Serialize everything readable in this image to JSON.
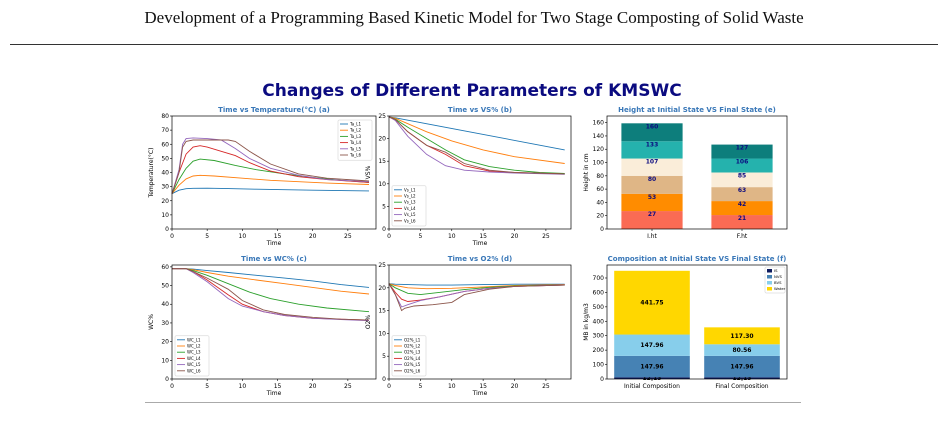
{
  "header": {
    "title": "Development of a Programming Based Kinetic Model for Two Stage Composting of Solid Waste"
  },
  "figure": {
    "title": "Changes of Different Parameters of KMSWC",
    "title_color": "#0b0b80",
    "panel_title_color": "#3a78b8"
  },
  "chart_data": [
    {
      "type": "line",
      "title": "Time vs Temperature(°C) (a)",
      "xlabel": "Time",
      "ylabel": "Temperature(°C)",
      "xlim": [
        0,
        29
      ],
      "ylim": [
        0,
        80
      ],
      "xticks": [
        0,
        5,
        10,
        15,
        20,
        25
      ],
      "yticks": [
        0,
        10,
        20,
        30,
        40,
        50,
        60,
        70,
        80
      ],
      "legend_position": "top-right",
      "series": [
        {
          "name": "Ta_L1",
          "color": "#1f77b4",
          "x": [
            0,
            1,
            2,
            3,
            5,
            8,
            12,
            16,
            20,
            24,
            28
          ],
          "y": [
            25,
            27.5,
            28.5,
            28.8,
            28.9,
            28.6,
            28.2,
            27.8,
            27.5,
            27.2,
            27
          ]
        },
        {
          "name": "Ta_L2",
          "color": "#ff7f0e",
          "x": [
            0,
            1,
            2,
            3,
            4,
            6,
            10,
            14,
            18,
            22,
            28
          ],
          "y": [
            25,
            31,
            35.5,
            37.5,
            38,
            37.5,
            36,
            34.5,
            33.5,
            32.5,
            31.5
          ]
        },
        {
          "name": "Ta_L3",
          "color": "#2ca02c",
          "x": [
            0,
            1,
            2,
            3,
            4,
            6,
            9,
            12,
            16,
            20,
            24,
            28
          ],
          "y": [
            25,
            35,
            43,
            48,
            49.5,
            48.5,
            45,
            42,
            39,
            36.5,
            34.5,
            33
          ]
        },
        {
          "name": "Ta_L4",
          "color": "#d62728",
          "x": [
            0,
            1,
            2,
            3,
            4,
            5,
            7,
            9,
            11,
            14,
            18,
            22,
            28
          ],
          "y": [
            25,
            40,
            53,
            58,
            59,
            58,
            55,
            52,
            47,
            41,
            37,
            35,
            33
          ]
        },
        {
          "name": "Ta_L5",
          "color": "#9467bd",
          "x": [
            0,
            1,
            1.5,
            2,
            3,
            5,
            7,
            9,
            11,
            14,
            18,
            22,
            28
          ],
          "y": [
            25,
            42,
            60,
            64,
            64.5,
            64,
            63,
            57,
            50,
            43,
            38,
            35,
            33.5
          ]
        },
        {
          "name": "Ta_L6",
          "color": "#8c564b",
          "x": [
            0,
            1,
            1.5,
            2,
            3,
            5,
            8,
            9,
            11,
            14,
            18,
            22,
            28
          ],
          "y": [
            25,
            40,
            58,
            62,
            63,
            63,
            63,
            62,
            55,
            46,
            39,
            36,
            34
          ]
        }
      ]
    },
    {
      "type": "line",
      "title": "Time vs VS% (b)",
      "xlabel": "Time",
      "ylabel": "VS%",
      "xlim": [
        0,
        29
      ],
      "ylim": [
        0,
        25
      ],
      "xticks": [
        0,
        5,
        10,
        15,
        20,
        25
      ],
      "yticks": [
        0,
        5,
        10,
        15,
        20,
        25
      ],
      "legend_position": "bottom-left",
      "series": [
        {
          "name": "Vs_L1",
          "color": "#1f77b4",
          "x": [
            0,
            1,
            28
          ],
          "y": [
            24.8,
            24.6,
            17.5
          ]
        },
        {
          "name": "Vs_L2",
          "color": "#ff7f0e",
          "x": [
            0,
            1,
            3,
            6,
            10,
            15,
            20,
            28
          ],
          "y": [
            24.8,
            24.5,
            23.3,
            21.5,
            19.5,
            17.5,
            16,
            14.5
          ]
        },
        {
          "name": "Vs_L3",
          "color": "#2ca02c",
          "x": [
            0,
            1,
            3,
            6,
            9,
            12,
            16,
            20,
            24,
            28
          ],
          "y": [
            24.8,
            24.3,
            22.5,
            20,
            17.5,
            15.3,
            13.8,
            13,
            12.5,
            12.3
          ]
        },
        {
          "name": "Vs_L4",
          "color": "#d62728",
          "x": [
            0,
            1,
            3,
            6,
            9,
            12,
            16,
            20,
            28
          ],
          "y": [
            24.8,
            24.2,
            21.5,
            18.5,
            16.5,
            14,
            12.8,
            12.5,
            12.2
          ]
        },
        {
          "name": "Vs_L5",
          "color": "#9467bd",
          "x": [
            0,
            1,
            3,
            6,
            9,
            12,
            16,
            20,
            28
          ],
          "y": [
            24.8,
            24,
            20.5,
            16.5,
            14,
            13,
            12.6,
            12.4,
            12.1
          ]
        },
        {
          "name": "Vs_L6",
          "color": "#8c564b",
          "x": [
            0,
            1,
            3,
            6,
            9,
            12,
            16,
            20,
            28
          ],
          "y": [
            24.8,
            24.2,
            21.5,
            18.5,
            17,
            14.5,
            13,
            12.5,
            12.2
          ]
        }
      ]
    },
    {
      "type": "bar",
      "stacked": true,
      "title": "Height at Initial State VS Final State (e)",
      "ylabel": "Height in cm",
      "categories": [
        "I.ht",
        "F.ht"
      ],
      "ylim": [
        0,
        170
      ],
      "yticks": [
        0,
        20,
        40,
        60,
        80,
        100,
        120,
        140,
        160
      ],
      "segment_colors": [
        "#fa6b54",
        "#ff8c00",
        "#dfb686",
        "#faedd9",
        "#25b2ad",
        "#0d7e7c"
      ],
      "segments": [
        [
          27,
          26,
          27,
          26,
          26,
          27
        ],
        [
          21,
          21,
          21,
          22,
          21,
          21
        ]
      ],
      "labels": [
        [
          "27",
          "53",
          "80",
          "107",
          "133",
          "160"
        ],
        [
          "21",
          "42",
          "63",
          "85",
          "106",
          "127"
        ]
      ],
      "label_color": "#0b0b80"
    },
    {
      "type": "line",
      "title": "Time vs WC% (c)",
      "xlabel": "Time",
      "ylabel": "WC%",
      "xlim": [
        0,
        29
      ],
      "ylim": [
        0,
        61
      ],
      "xticks": [
        0,
        5,
        10,
        15,
        20,
        25
      ],
      "yticks": [
        0,
        10,
        20,
        30,
        40,
        50,
        60
      ],
      "legend_position": "bottom-left",
      "series": [
        {
          "name": "WC_L1",
          "color": "#1f77b4",
          "x": [
            0,
            2,
            3,
            5,
            8,
            12,
            16,
            20,
            24,
            28
          ],
          "y": [
            59,
            59,
            58.8,
            58,
            57,
            55.5,
            54,
            52.5,
            50.5,
            49
          ]
        },
        {
          "name": "WC_L2",
          "color": "#ff7f0e",
          "x": [
            0,
            2,
            3,
            5,
            8,
            12,
            16,
            20,
            24,
            28
          ],
          "y": [
            59,
            59,
            58.5,
            57,
            55,
            53,
            51,
            49,
            47,
            45.5
          ]
        },
        {
          "name": "WC_L3",
          "color": "#2ca02c",
          "x": [
            0,
            2,
            3,
            5,
            8,
            11,
            14,
            18,
            22,
            28
          ],
          "y": [
            59,
            59,
            58,
            55.5,
            51,
            46.5,
            43,
            40,
            38,
            36
          ]
        },
        {
          "name": "WC_L4",
          "color": "#d62728",
          "x": [
            0,
            2,
            3,
            5,
            8,
            10,
            13,
            16,
            20,
            24,
            28
          ],
          "y": [
            59,
            59,
            57.5,
            53,
            45,
            40,
            36,
            34,
            32.5,
            32,
            31.5
          ]
        },
        {
          "name": "WC_L5",
          "color": "#9467bd",
          "x": [
            0,
            2,
            3,
            5,
            8,
            10,
            13,
            16,
            20,
            24,
            28
          ],
          "y": [
            59,
            59,
            57,
            52,
            43,
            39,
            36,
            34,
            32.5,
            31.8,
            31.2
          ]
        },
        {
          "name": "WC_L6",
          "color": "#8c564b",
          "x": [
            0,
            2,
            3,
            5,
            8,
            10,
            13,
            16,
            20,
            24,
            28
          ],
          "y": [
            59,
            59,
            57.5,
            54,
            48,
            42,
            37,
            34.5,
            33,
            32,
            31.5
          ]
        }
      ]
    },
    {
      "type": "line",
      "title": "Time vs O2% (d)",
      "xlabel": "Time",
      "ylabel": "O2%",
      "xlim": [
        0,
        29
      ],
      "ylim": [
        0,
        25
      ],
      "xticks": [
        0,
        5,
        10,
        15,
        20,
        25
      ],
      "yticks": [
        0,
        5,
        10,
        15,
        20,
        25
      ],
      "legend_position": "bottom-left",
      "series": [
        {
          "name": "O2%_L1",
          "color": "#1f77b4",
          "x": [
            0,
            1,
            3,
            6,
            10,
            15,
            20,
            28
          ],
          "y": [
            20.9,
            20.8,
            20.7,
            20.6,
            20.6,
            20.7,
            20.8,
            20.8
          ]
        },
        {
          "name": "O2%_L2",
          "color": "#ff7f0e",
          "x": [
            0,
            1,
            3,
            6,
            10,
            15,
            20,
            28
          ],
          "y": [
            20.9,
            20.5,
            20,
            19.8,
            19.9,
            20.2,
            20.5,
            20.7
          ]
        },
        {
          "name": "O2%_L3",
          "color": "#2ca02c",
          "x": [
            0,
            1,
            3,
            5,
            8,
            12,
            16,
            20,
            28
          ],
          "y": [
            20.9,
            20,
            18.8,
            18.5,
            19,
            19.6,
            20.1,
            20.4,
            20.6
          ]
        },
        {
          "name": "O2%_L4",
          "color": "#d62728",
          "x": [
            0,
            1,
            2,
            3,
            5,
            8,
            12,
            16,
            20,
            28
          ],
          "y": [
            20.9,
            19,
            17.5,
            17,
            17.3,
            18,
            19.2,
            19.9,
            20.3,
            20.6
          ]
        },
        {
          "name": "O2%_L5",
          "color": "#9467bd",
          "x": [
            0,
            1,
            2,
            3,
            5,
            8,
            12,
            16,
            20,
            28
          ],
          "y": [
            20.9,
            18.5,
            15.8,
            16.3,
            17.2,
            18,
            19.2,
            19.9,
            20.3,
            20.6
          ]
        },
        {
          "name": "O2%_L6",
          "color": "#8c564b",
          "x": [
            0,
            1,
            2,
            2.5,
            4,
            7,
            10,
            12,
            16,
            20,
            28
          ],
          "y": [
            20.9,
            18.5,
            15,
            15.5,
            16,
            16.3,
            16.8,
            18.5,
            19.7,
            20.3,
            20.6
          ]
        }
      ]
    },
    {
      "type": "bar",
      "stacked": true,
      "title": "Composition at Initial State VS Final State (f)",
      "ylabel": "MB in kg/m3",
      "categories": [
        "Initial Composition",
        "Final Composition"
      ],
      "ylim": [
        0,
        790
      ],
      "yticks": [
        0,
        100,
        200,
        300,
        400,
        500,
        600,
        700
      ],
      "legend_position": "top-right",
      "series": [
        {
          "name": "IS",
          "color": "#0d1b5e",
          "values": [
            12.13,
            12.13
          ],
          "labels": [
            "12.13",
            "12.13"
          ]
        },
        {
          "name": "NVS",
          "color": "#4682b4",
          "values": [
            147.96,
            147.96
          ],
          "labels": [
            "147.96",
            "147.96"
          ]
        },
        {
          "name": "BVS",
          "color": "#87ceeb",
          "values": [
            147.96,
            80.56
          ],
          "labels": [
            "147.96",
            "80.56"
          ]
        },
        {
          "name": "Water",
          "color": "#ffd700",
          "values": [
            441.75,
            117.3
          ],
          "labels": [
            "441.75",
            "117.30"
          ]
        }
      ]
    }
  ]
}
